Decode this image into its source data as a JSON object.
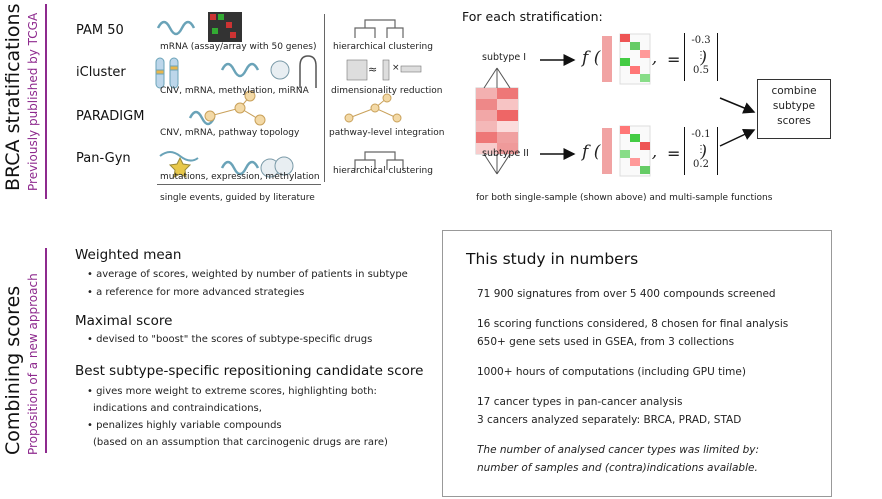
{
  "top_left": {
    "title": "BRCA stratifications",
    "subtitle": "Previously published by TCGA",
    "methods": [
      "PAM 50",
      "iCluster",
      "PARADIGM",
      "Pan-Gyn"
    ],
    "data_captions": [
      "mRNA (assay/array with 50 genes)",
      "CNV, mRNA, methylation, miRNA",
      "CNV, mRNA, pathway topology",
      "mutations, expression, methylation"
    ],
    "data_footer": "single events, guided by literature",
    "technique_captions": [
      "hierarchical clustering",
      "dimensionality reduction",
      "pathway-level integration",
      "hierarchical clustering"
    ]
  },
  "top_right": {
    "title": "For each stratification:",
    "subtype_1": "subtype I",
    "subtype_2": "subtype II",
    "f_label": "f",
    "vector_1": [
      "-0.3",
      "⋮",
      "0.5"
    ],
    "vector_2": [
      "-0.1",
      "⋮",
      "0.2"
    ],
    "combine_box": [
      "combine",
      "subtype",
      "scores"
    ],
    "footer": "for both single-sample (shown above) and multi-sample functions"
  },
  "bottom_left": {
    "title": "Combining scores",
    "subtitle": "Proposition of a new approach",
    "sections": [
      {
        "heading": "Weighted mean",
        "bullets": [
          "• average of scores, weighted by number of patients in subtype",
          "• a reference for more advanced strategies"
        ]
      },
      {
        "heading": "Maximal score",
        "bullets": [
          "• devised to \"boost\" the scores of subtype-specific drugs"
        ]
      },
      {
        "heading": "Best subtype-specific repositioning candidate score",
        "bullets": [
          "• gives more weight to extreme scores, highlighting both:",
          "indications and contraindications,",
          "• penalizes highly variable compounds",
          "(based on an assumption that carcinogenic drugs are rare)"
        ]
      }
    ]
  },
  "numbers_box": {
    "title": "This study in numbers",
    "lines": [
      "71 900 signatures from over 5 400 compounds screened",
      "16 scoring functions considered, 8 chosen for final analysis",
      "650+ gene sets used in GSEA, from 3 collections",
      "1000+ hours of computations (including GPU time)",
      "17 cancer types in pan-cancer analysis",
      "3 cancers analyzed separately: BRCA, PRAD, STAD",
      "The number of analysed cancer types was limited by:",
      "number of samples and (contra)indications available."
    ]
  },
  "colors": {
    "accent": "#8e2a8e",
    "red": "#e05a5a",
    "green": "#4cc24c"
  }
}
